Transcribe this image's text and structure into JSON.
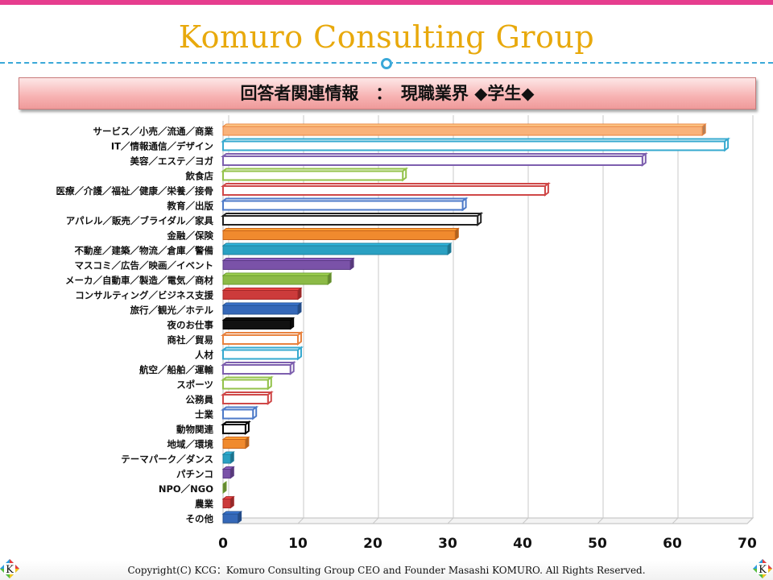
{
  "header": {
    "brand_title": "Komuro Consulting Group",
    "banner_title": "回答者関連情報　：　現職業界 ◆学生◆"
  },
  "footer": {
    "copyright": "Copyright(C)  KCG：Komuro Consulting Group   CEO and Founder  Masashi KOMURO. All Rights Reserved.",
    "logo_letter": "K"
  },
  "colors": {
    "brand_gold": "#e8a90c",
    "top_band": "#e63d8e",
    "dashed_rule": "#3aa8d8",
    "banner_pink": "#f7b2b2"
  },
  "chart_data": {
    "type": "bar",
    "orientation": "horizontal",
    "style": "3d-bar",
    "categories": [
      "サービス／小売／流通／商業",
      "IT／情報通信／デザイン",
      "美容／エステ／ヨガ",
      "飲食店",
      "医療／介護／福祉／健康／栄養／接骨",
      "教育／出版",
      "アパレル／販売／ブライダル／家具",
      "金融／保険",
      "不動産／建築／物流／倉庫／警備",
      "マスコミ／広告／映画／イベント",
      "メーカ／自動車／製造／電気／商材",
      "コンサルティング／ビジネス支援",
      "旅行／観光／ホテル",
      "夜のお仕事",
      "商社／貿易",
      "人材",
      "航空／船舶／運輸",
      "スポーツ",
      "公務員",
      "士業",
      "動物関連",
      "地域／環境",
      "テーマパーク／ダンス",
      "パチンコ",
      "NPO／NGO",
      "農業",
      "その他"
    ],
    "values": [
      64,
      67,
      56,
      24,
      43,
      32,
      34,
      31,
      30,
      17,
      14,
      10,
      10,
      9,
      10,
      10,
      9,
      6,
      6,
      4,
      3,
      3,
      1,
      1,
      0,
      1,
      2
    ],
    "bar_colors": [
      "#f9b27a",
      "#9bdcf0",
      "#b8a2d8",
      "#d7ec9e",
      "#f2a0a0",
      "#8fb0e0",
      "#d0d0d0",
      "#f08a2e",
      "#2aa0c2",
      "#7a52a8",
      "#8cba46",
      "#cc3b3b",
      "#3568b8",
      "#111111",
      "#f9b27a",
      "#9bdcf0",
      "#b8a2d8",
      "#d7ec9e",
      "#f2a0a0",
      "#8fb0e0",
      "#ffffff",
      "#f08a2e",
      "#2aa0c2",
      "#7a52a8",
      "#8cba46",
      "#cc3b3b",
      "#3568b8"
    ],
    "bar_outline_colors": [
      "#e8823e",
      "#36a9cf",
      "#7d5fae",
      "#93c24a",
      "#cf4848",
      "#4d7ac8",
      "#222222",
      "#c9641a",
      "#1f7f9c",
      "#5b3a86",
      "#6a9a2e",
      "#a82828",
      "#24508f",
      "#000000",
      "#e8823e",
      "#36a9cf",
      "#7d5fae",
      "#93c24a",
      "#cf4848",
      "#4d7ac8",
      "#000000",
      "#c9641a",
      "#1f7f9c",
      "#5b3a86",
      "#6a9a2e",
      "#a82828",
      "#24508f"
    ],
    "hollow_bars": [
      false,
      true,
      true,
      true,
      true,
      true,
      true,
      false,
      false,
      false,
      false,
      false,
      false,
      false,
      true,
      true,
      true,
      true,
      true,
      true,
      true,
      false,
      false,
      false,
      false,
      false,
      false
    ],
    "xticks": [
      "0",
      "10",
      "20",
      "30",
      "40",
      "50",
      "60",
      "70"
    ],
    "xlim": [
      0,
      70
    ],
    "grid": true,
    "title": "",
    "xlabel": "",
    "ylabel": ""
  }
}
